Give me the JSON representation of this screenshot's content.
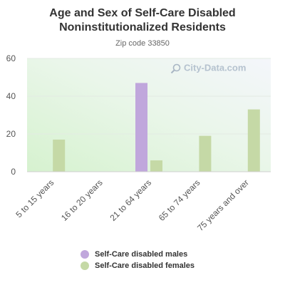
{
  "header": {
    "title_line1": "Age and Sex of Self-Care Disabled",
    "title_line2": "Noninstitutionalized Residents",
    "subtitle": "Zip code 33850"
  },
  "watermark": "City-Data.com",
  "colors": {
    "males": "#c0a7dc",
    "females": "#c5d9a6"
  },
  "chart_data": {
    "type": "bar",
    "title": "Age and Sex of Self-Care Disabled Noninstitutionalized Residents",
    "subtitle": "Zip code 33850",
    "categories": [
      "5 to 15 years",
      "16 to 20 years",
      "21 to 64 years",
      "65 to 74 years",
      "75 years and over"
    ],
    "series": [
      {
        "name": "Self-Care disabled males",
        "values": [
          0,
          0,
          47,
          0,
          0
        ]
      },
      {
        "name": "Self-Care disabled females",
        "values": [
          17,
          0,
          6,
          19,
          33
        ]
      }
    ],
    "ylim": [
      0,
      60
    ],
    "yticks": [
      0,
      20,
      40,
      60
    ],
    "grid": true,
    "legend": "bottom"
  }
}
